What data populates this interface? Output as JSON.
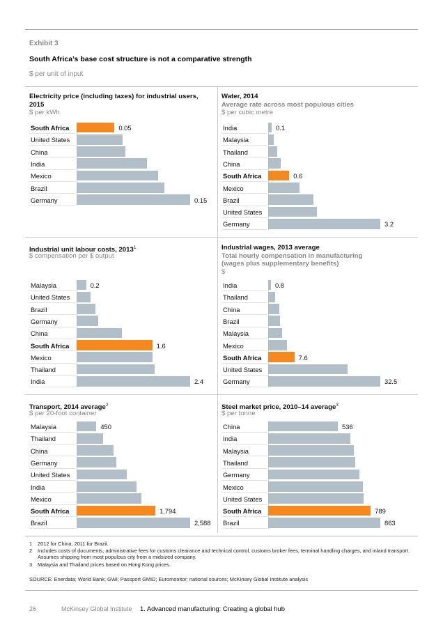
{
  "header": {
    "exhibit": "Exhibit 3",
    "title": "South Africa’s base cost structure is not a comparative strength",
    "unit": "$ per unit of input"
  },
  "colors": {
    "highlight": "#f5881f",
    "bar": "#b3bfc8"
  },
  "chart_data": [
    {
      "type": "bar",
      "orientation": "horizontal",
      "title": "Electricity price (including taxes) for industrial users, 2015",
      "title_lines": [
        "Electricity price (including taxes) for industrial users,",
        "2015"
      ],
      "subtitle_lines": [],
      "unit": "$ per kWh",
      "categories": [
        "South Africa",
        "United States",
        "China",
        "India",
        "Mexico",
        "Brazil",
        "Germany"
      ],
      "values": [
        0.05,
        0.061,
        0.064,
        0.093,
        0.108,
        0.116,
        0.15
      ],
      "value_labels": [
        "0.05",
        "",
        "",
        "",
        "",
        "",
        "0.15"
      ],
      "highlight": "South Africa",
      "xlim": [
        0,
        0.15
      ]
    },
    {
      "type": "bar",
      "orientation": "horizontal",
      "title": "Water, 2014",
      "title_lines": [
        "Water, 2014"
      ],
      "subtitle_lines": [
        "Average rate across most populous cities"
      ],
      "unit": "$ per cubic metre",
      "categories": [
        "India",
        "Malaysia",
        "Thailand",
        "China",
        "South Africa",
        "Mexico",
        "Brazil",
        "United States",
        "Germany"
      ],
      "values": [
        0.1,
        0.15,
        0.25,
        0.35,
        0.6,
        0.9,
        1.3,
        1.4,
        3.2
      ],
      "value_labels": [
        "0.1",
        "",
        "",
        "",
        "0.6",
        "",
        "",
        "",
        "3.2"
      ],
      "highlight": "South Africa",
      "xlim": [
        0,
        3.2
      ]
    },
    {
      "type": "bar",
      "orientation": "horizontal",
      "title": "Industrial unit labour costs, 2013",
      "title_sup": "1",
      "title_lines": [
        "Industrial unit labour costs, 2013"
      ],
      "subtitle_lines": [],
      "unit": "$ compensation per $ output",
      "categories": [
        "Malaysia",
        "United States",
        "Brazil",
        "Germany",
        "China",
        "South Africa",
        "Mexico",
        "Thailand",
        "India"
      ],
      "values": [
        0.2,
        0.3,
        0.4,
        0.45,
        0.95,
        1.6,
        1.6,
        1.65,
        2.4
      ],
      "value_labels": [
        "0.2",
        "",
        "",
        "",
        "",
        "1.6",
        "",
        "",
        "2.4"
      ],
      "highlight": "South Africa",
      "xlim": [
        0,
        2.4
      ]
    },
    {
      "type": "bar",
      "orientation": "horizontal",
      "title": "Industrial wages, 2013 average",
      "title_lines": [
        "Industrial wages, 2013 average"
      ],
      "subtitle_lines": [
        "Total hourly compensation in manufacturing",
        "(wages plus supplementary benefits)"
      ],
      "unit": "$",
      "categories": [
        "India",
        "Thailand",
        "China",
        "Brazil",
        "Malaysia",
        "Mexico",
        "South Africa",
        "United States",
        "Germany"
      ],
      "values": [
        0.8,
        2.0,
        3.2,
        3.4,
        4.0,
        5.5,
        7.6,
        23.0,
        32.5
      ],
      "value_labels": [
        "0.8",
        "",
        "",
        "",
        "",
        "",
        "7.6",
        "",
        "32.5"
      ],
      "highlight": "South Africa",
      "xlim": [
        0,
        32.5
      ]
    },
    {
      "type": "bar",
      "orientation": "horizontal",
      "title": "Transport, 2014 average",
      "title_sup": "2",
      "title_lines": [
        "Transport, 2014 average"
      ],
      "subtitle_lines": [],
      "unit": "$ per 20-foot container",
      "categories": [
        "Malaysia",
        "Thailand",
        "China",
        "Germany",
        "United States",
        "India",
        "Mexico",
        "South Africa",
        "Brazil"
      ],
      "values": [
        450,
        600,
        835,
        900,
        1150,
        1370,
        1480,
        1794,
        2588
      ],
      "value_labels": [
        "450",
        "",
        "",
        "",
        "",
        "",
        "",
        "1,794",
        "2,588"
      ],
      "highlight": "South Africa",
      "xlim": [
        0,
        2588
      ]
    },
    {
      "type": "bar",
      "orientation": "horizontal",
      "title": "Steel market price, 2010–14 average",
      "title_sup": "3",
      "title_lines": [
        "Steel market price, 2010–14 average"
      ],
      "subtitle_lines": [],
      "unit": "$ per tonne",
      "categories": [
        "China",
        "India",
        "Malaysia",
        "Thailand",
        "Germany",
        "Mexico",
        "United States",
        "South Africa",
        "Brazil"
      ],
      "values": [
        536,
        630,
        660,
        670,
        700,
        730,
        735,
        789,
        863
      ],
      "value_labels": [
        "536",
        "",
        "",
        "",
        "",
        "",
        "",
        "789",
        "863"
      ],
      "highlight": "South Africa",
      "xlim": [
        0,
        863
      ]
    }
  ],
  "footnotes": [
    {
      "num": "1",
      "text": "2012 for China, 2011 for Brazil."
    },
    {
      "num": "2",
      "text": "Includes costs of documents, administrative fees for customs clearance and technical control, customs broker fees, terminal handling charges, and inland transport. Assumes shipping from most populous city from a midsized company."
    },
    {
      "num": "3",
      "text": "Malaysia and Thailand prices based on Hong Kong prices."
    }
  ],
  "source": "SOURCE: Enerdata; World Bank; GWI; Passport GMID; Euromonitor; national sources; McKinsey Global Institute analysis",
  "page_footer": {
    "page": "26",
    "publisher": "McKinsey Global Institute",
    "report": "1. Advanced manufacturing: Creating a global hub"
  }
}
